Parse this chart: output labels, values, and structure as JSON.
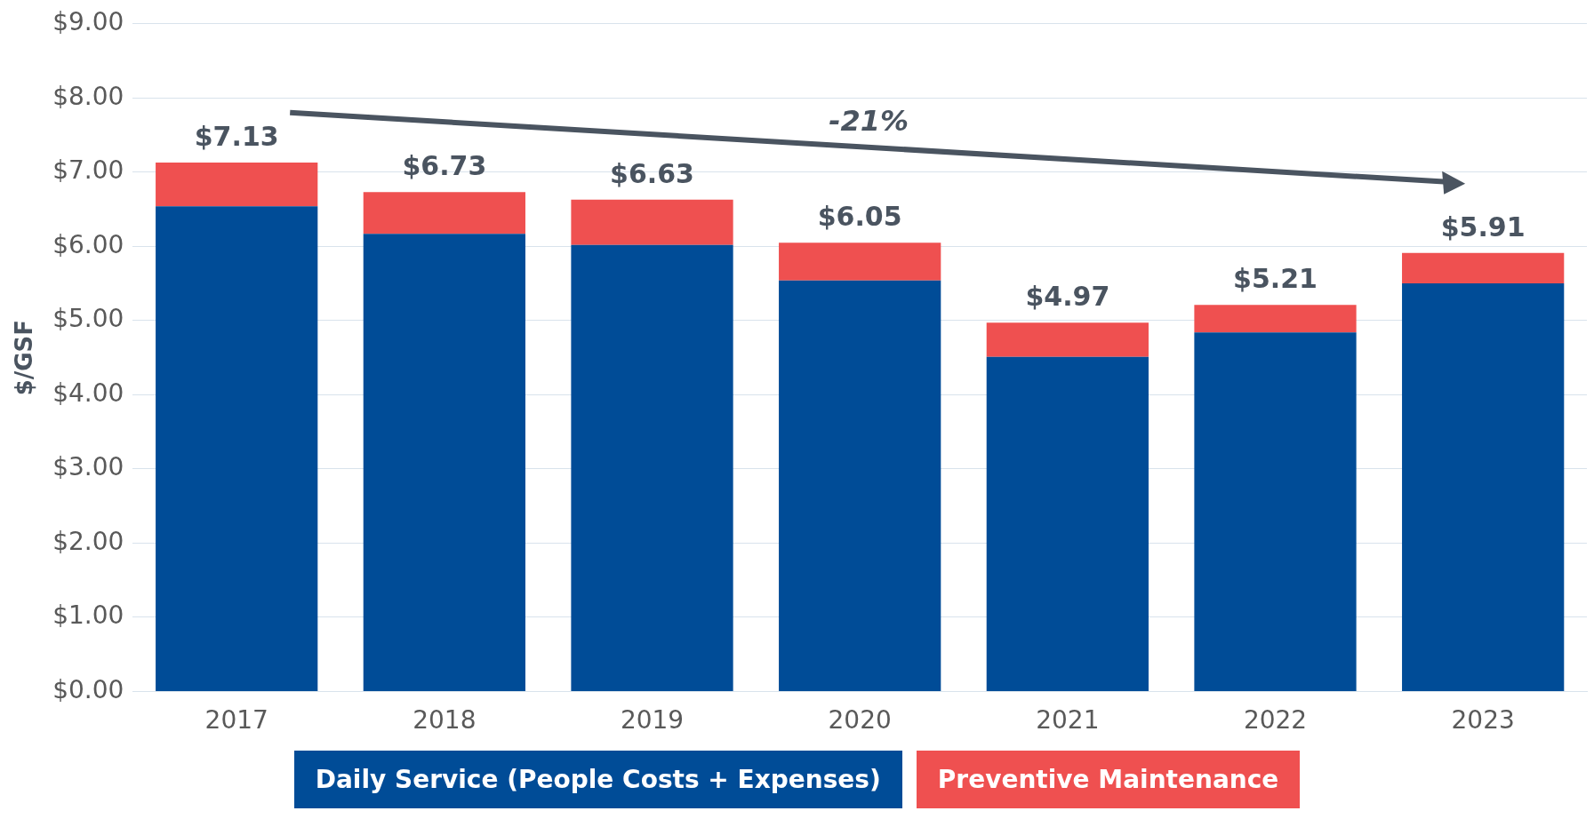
{
  "chart_data": {
    "type": "bar",
    "stacked": true,
    "ylabel": "$/GSF",
    "categories": [
      "2017",
      "2018",
      "2019",
      "2020",
      "2021",
      "2022",
      "2023"
    ],
    "series": [
      {
        "name": "Daily Service (People Costs + Expenses)",
        "color": "#004c97",
        "values": [
          6.54,
          6.17,
          6.02,
          5.54,
          4.51,
          4.84,
          5.5
        ]
      },
      {
        "name": "Preventive Maintenance",
        "color": "#ef5050",
        "values": [
          0.59,
          0.56,
          0.61,
          0.51,
          0.46,
          0.37,
          0.41
        ]
      }
    ],
    "totals": [
      "$7.13",
      "$6.73",
      "$6.63",
      "$6.05",
      "$4.97",
      "$5.21",
      "$5.91"
    ],
    "annotations": [
      "-21%"
    ],
    "ylim": [
      0,
      9
    ],
    "yticks": [
      {
        "value": 0,
        "label": "$0.00"
      },
      {
        "value": 1,
        "label": "$1.00"
      },
      {
        "value": 2,
        "label": "$2.00"
      },
      {
        "value": 3,
        "label": "$3.00"
      },
      {
        "value": 4,
        "label": "$4.00"
      },
      {
        "value": 5,
        "label": "$5.00"
      },
      {
        "value": 6,
        "label": "$6.00"
      },
      {
        "value": 7,
        "label": "$7.00"
      },
      {
        "value": 8,
        "label": "$8.00"
      },
      {
        "value": 9,
        "label": "$9.00"
      }
    ],
    "grid": "y",
    "legend": "bottom"
  }
}
